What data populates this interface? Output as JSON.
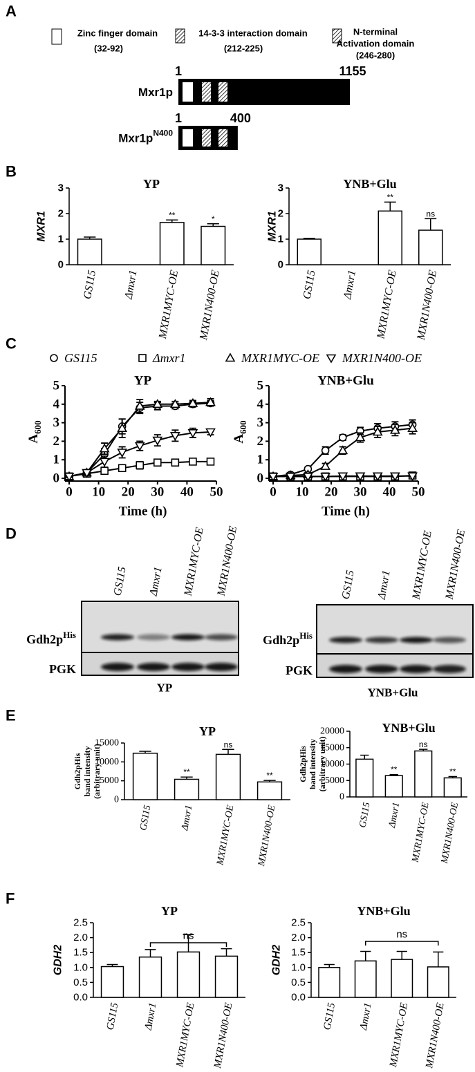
{
  "panel_labels": [
    "A",
    "B",
    "C",
    "D",
    "E",
    "F"
  ],
  "domain_legend": [
    {
      "lines": [
        "Zinc finger domain",
        "(32-92)"
      ]
    },
    {
      "lines": [
        "14-3-3 interaction domain",
        "(212-225)"
      ]
    },
    {
      "lines": [
        "N-terminal",
        "Activation domain",
        "(246-280)"
      ]
    }
  ],
  "constructs": [
    {
      "name": "Mxr1p",
      "start": 1,
      "end": 1155
    },
    {
      "name": "Mxr1p",
      "superscript": "N400",
      "start": 1,
      "end": 400
    }
  ],
  "blots": [
    {
      "lanes": [
        "GS115",
        "Δmxr1",
        "MXR1MYC-OE",
        "MXR1N400-OE"
      ],
      "rows": [
        {
          "name": "Gdh2p",
          "superscript": "His"
        },
        {
          "name": "PGK"
        }
      ],
      "condition": "YP"
    },
    {
      "lanes": [
        "GS115",
        "Δmxr1",
        "MXR1MYC-OE",
        "MXR1N400-OE"
      ],
      "rows": [
        {
          "name": "Gdh2p",
          "superscript": "His"
        },
        {
          "name": "PGK"
        }
      ],
      "condition": "YNB+Glu"
    }
  ],
  "chart_data": [
    {
      "type": "bar",
      "title": "YP",
      "ylabel": "MXR1",
      "categories": [
        "GS115",
        "Δmxr1",
        "MXR1MYC-OE",
        "MXR1N400-OE"
      ],
      "values": [
        1.0,
        0,
        1.65,
        1.5
      ],
      "errors": [
        0.08,
        null,
        0.1,
        0.1
      ],
      "annotations": [
        null,
        null,
        "**",
        "*"
      ],
      "color": "#ffffff",
      "ylim": [
        0,
        3
      ],
      "yticks": [
        0,
        1,
        2,
        3
      ]
    },
    {
      "type": "bar",
      "title": "YNB+Glu",
      "ylabel": "MXR1",
      "categories": [
        "GS115",
        "Δmxr1",
        "MXR1MYC-OE",
        "MXR1N400-OE"
      ],
      "values": [
        1.0,
        0,
        2.1,
        1.35
      ],
      "errors": [
        0.03,
        null,
        0.35,
        0.45
      ],
      "annotations": [
        null,
        null,
        "**",
        "ns"
      ],
      "color": "#ffffff",
      "ylim": [
        0,
        3
      ],
      "yticks": [
        0,
        1,
        2,
        3
      ]
    },
    {
      "type": "line",
      "title": "YP",
      "xlabel": "Time (h)",
      "ylabel": "A",
      "ylabel_subscript": "600",
      "x": [
        0,
        6,
        12,
        18,
        24,
        30,
        36,
        42,
        48
      ],
      "xlim": [
        0,
        50
      ],
      "xticks": [
        0,
        10,
        20,
        30,
        40,
        50
      ],
      "ylim": [
        0,
        5
      ],
      "yticks": [
        0,
        1,
        2,
        3,
        4,
        5
      ],
      "series": [
        {
          "name": "GS115",
          "marker": "circle",
          "color": "#000000",
          "values": [
            0.1,
            0.3,
            1.3,
            2.8,
            3.8,
            3.9,
            3.9,
            4.0,
            4.05
          ],
          "errors": [
            0.05,
            0.1,
            0.3,
            0.4,
            0.3,
            0.2,
            0.15,
            0.15,
            0.15
          ]
        },
        {
          "name": "Δmxr1",
          "marker": "square",
          "color": "#000000",
          "values": [
            0.1,
            0.25,
            0.4,
            0.55,
            0.7,
            0.85,
            0.85,
            0.9,
            0.9
          ],
          "errors": [
            0.05,
            0.05,
            0.1,
            0.15,
            0.2,
            0.1,
            0.1,
            0.1,
            0.1
          ]
        },
        {
          "name": "MXR1MYC-OE",
          "marker": "triangle-up",
          "color": "#000000",
          "values": [
            0.1,
            0.3,
            1.6,
            2.7,
            3.9,
            4.0,
            4.0,
            4.05,
            4.1
          ],
          "errors": [
            0.05,
            0.1,
            0.3,
            0.5,
            0.35,
            0.15,
            0.15,
            0.15,
            0.2
          ]
        },
        {
          "name": "MXR1N400-OE",
          "marker": "triangle-down",
          "color": "#000000",
          "values": [
            0.1,
            0.3,
            0.9,
            1.4,
            1.75,
            2.05,
            2.3,
            2.45,
            2.5
          ],
          "errors": [
            0.05,
            0.1,
            0.3,
            0.3,
            0.25,
            0.3,
            0.3,
            0.25,
            0.15
          ]
        }
      ]
    },
    {
      "type": "line",
      "title": "YNB+Glu",
      "xlabel": "Time (h)",
      "ylabel": "A",
      "ylabel_subscript": "600",
      "x": [
        0,
        6,
        12,
        18,
        24,
        30,
        36,
        42,
        48
      ],
      "xlim": [
        0,
        50
      ],
      "xticks": [
        0,
        10,
        20,
        30,
        40,
        50
      ],
      "ylim": [
        0,
        5
      ],
      "yticks": [
        0,
        1,
        2,
        3,
        4,
        5
      ],
      "series": [
        {
          "marker": "circle",
          "color": "#000000",
          "values": [
            0.1,
            0.2,
            0.5,
            1.5,
            2.2,
            2.55,
            2.7,
            2.8,
            2.9
          ],
          "errors": [
            0.05,
            0.1,
            0.1,
            0.2,
            0.15,
            0.2,
            0.25,
            0.25,
            0.25
          ]
        },
        {
          "marker": "square",
          "color": "#000000",
          "values": [
            0.1,
            0.1,
            0.1,
            0.1,
            0.1,
            0.1,
            0.1,
            0.1,
            0.15
          ],
          "errors": [
            0.05,
            0.05,
            0.05,
            0.05,
            0.05,
            0.05,
            0.05,
            0.05,
            0.05
          ]
        },
        {
          "marker": "triangle-up",
          "color": "#000000",
          "values": [
            0.1,
            0.15,
            0.2,
            0.65,
            1.5,
            2.2,
            2.5,
            2.6,
            2.7
          ],
          "errors": [
            0.05,
            0.05,
            0.1,
            0.15,
            0.2,
            0.25,
            0.3,
            0.3,
            0.3
          ]
        },
        {
          "marker": "triangle-down",
          "color": "#000000",
          "values": [
            0.1,
            0.1,
            0.1,
            0.1,
            0.12,
            0.12,
            0.12,
            0.12,
            0.12
          ],
          "errors": [
            0.05,
            0.05,
            0.05,
            0.05,
            0.05,
            0.05,
            0.05,
            0.05,
            0.05
          ]
        }
      ]
    },
    {
      "type": "bar",
      "title": "YP",
      "ylabel_lines": [
        "Gdh2pHis",
        "band intensity",
        "(arbitrary unit)"
      ],
      "categories": [
        "GS115",
        "Δmxr1",
        "MXR1MYC-OE",
        "MXR1N400-OE"
      ],
      "values": [
        12300,
        5400,
        12000,
        4700
      ],
      "errors": [
        500,
        600,
        1300,
        400
      ],
      "annotations": [
        null,
        "**",
        "ns",
        "**"
      ],
      "color": "#ffffff",
      "ylim": [
        0,
        15000
      ],
      "yticks": [
        0,
        5000,
        10000,
        15000
      ]
    },
    {
      "type": "bar",
      "title": "YNB+Glu",
      "ylabel_lines": [
        "Gdh2pHis",
        "band intensity",
        "(arbitrary unit)"
      ],
      "categories": [
        "GS115",
        "Δmxr1",
        "MXR1MYC-OE",
        "MXR1N400-OE"
      ],
      "values": [
        11500,
        6500,
        14000,
        5800
      ],
      "errors": [
        1200,
        300,
        500,
        400
      ],
      "annotations": [
        null,
        "**",
        "ns",
        "**"
      ],
      "color": "#ffffff",
      "ylim": [
        0,
        20000
      ],
      "yticks": [
        0,
        5000,
        10000,
        15000,
        20000
      ]
    },
    {
      "type": "bar",
      "title": "YP",
      "ylabel": "GDH2",
      "categories": [
        "GS115",
        "Δmxr1",
        "MXR1MYC-OE",
        "MXR1N400-OE"
      ],
      "values": [
        1.03,
        1.35,
        1.52,
        1.38
      ],
      "errors": [
        0.07,
        0.25,
        0.58,
        0.25
      ],
      "bracket_label": "ns",
      "color": "#ffffff",
      "ylim": [
        0,
        2.5
      ],
      "yticks": [
        {
          "value": 0,
          "label": "0.0"
        },
        0.5,
        {
          "value": 1,
          "label": "1.0"
        },
        1.5,
        {
          "value": 2,
          "label": "2.0"
        },
        2.5
      ]
    },
    {
      "type": "bar",
      "title": "YNB+Glu",
      "ylabel": "GDH2",
      "categories": [
        "GS115",
        "Δmxr1",
        "MXR1MYC-OE",
        "MXR1N400-OE"
      ],
      "values": [
        1.0,
        1.22,
        1.27,
        1.02
      ],
      "errors": [
        0.1,
        0.32,
        0.27,
        0.5
      ],
      "bracket_label": "ns",
      "color": "#ffffff",
      "ylim": [
        0,
        2.5
      ],
      "yticks": [
        {
          "value": 0,
          "label": "0.0"
        },
        0.5,
        {
          "value": 1,
          "label": "1.0"
        },
        1.5,
        {
          "value": 2,
          "label": "2.0"
        },
        2.5
      ]
    }
  ]
}
